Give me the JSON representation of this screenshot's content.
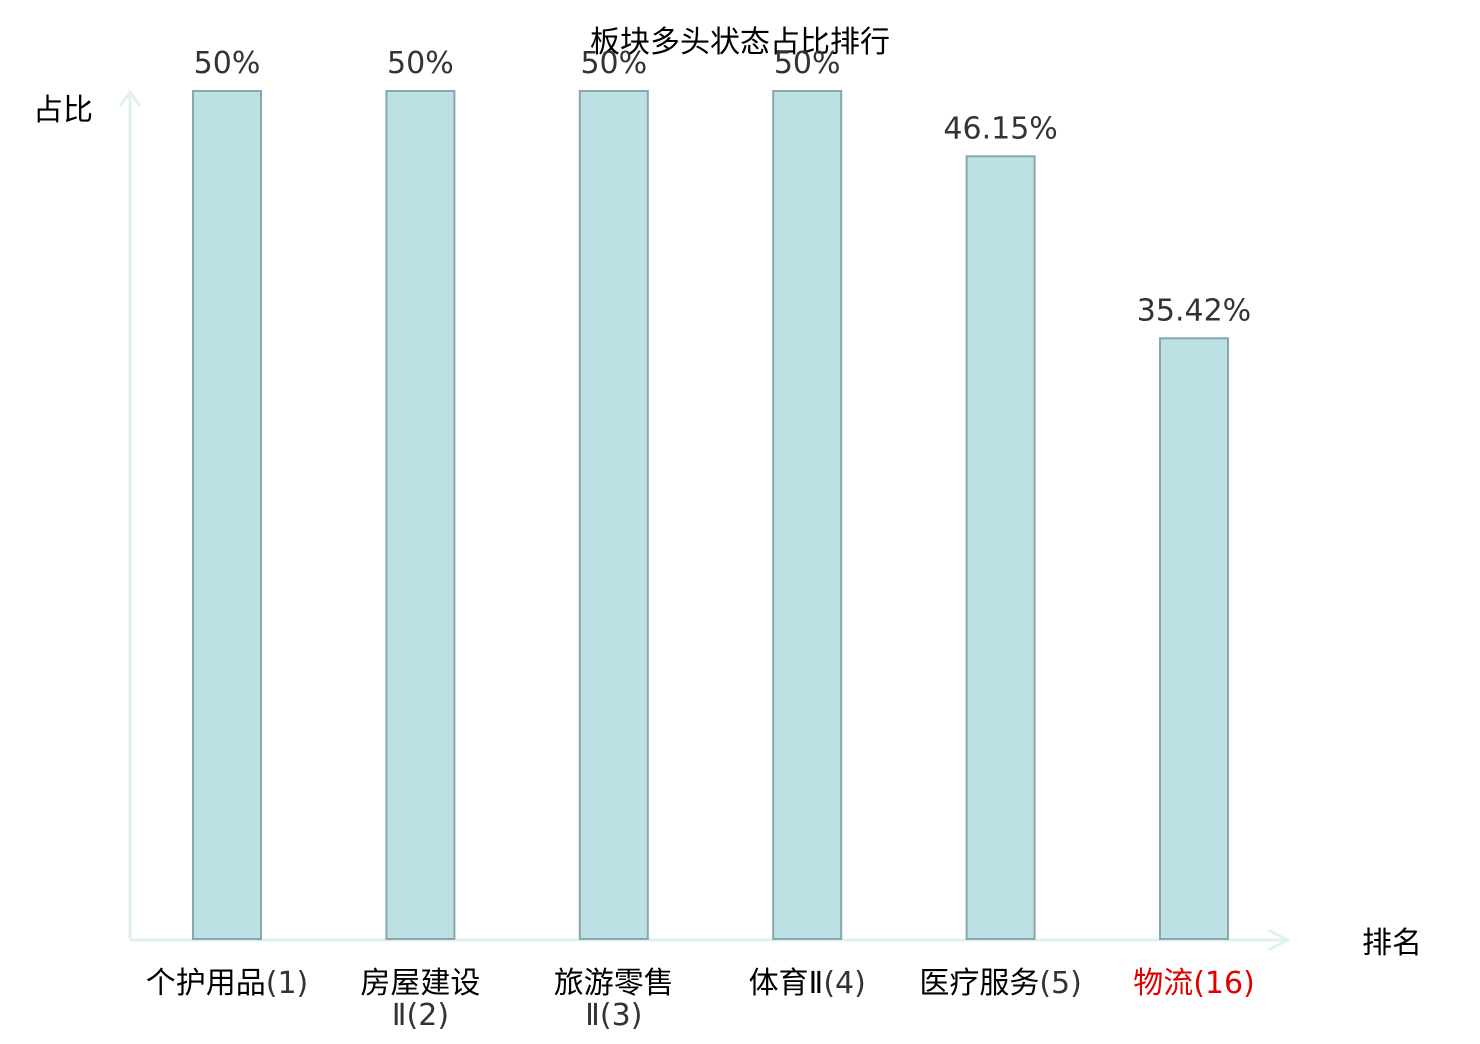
{
  "chart_data": {
    "type": "bar",
    "title": "板块多头状态占比排行",
    "ylabel": "占比",
    "xlabel": "排名",
    "ylim": [
      0,
      50
    ],
    "grid": false,
    "categories": [
      {
        "name": "个护用品",
        "rank": "(1)",
        "highlight": false
      },
      {
        "name": "房屋建设",
        "name_line2": "Ⅱ",
        "rank": "(2)",
        "highlight": false
      },
      {
        "name": "旅游零售",
        "name_line2": "Ⅱ",
        "rank": "(3)",
        "highlight": false
      },
      {
        "name": "体育Ⅱ",
        "rank": "(4)",
        "highlight": false
      },
      {
        "name": "医疗服务",
        "rank": "(5)",
        "highlight": false
      },
      {
        "name": "物流",
        "rank": "(16)",
        "highlight": true
      }
    ],
    "values": [
      50,
      50,
      50,
      50,
      46.15,
      35.42
    ],
    "value_labels": [
      "50%",
      "50%",
      "50%",
      "50%",
      "46.15%",
      "35.42%"
    ]
  },
  "colors": {
    "bar_fill": "#bce0e3",
    "bar_stroke": "#86a7ab",
    "axis": "#dff2ef",
    "label_text": "#333333",
    "highlight_text": "#e00000",
    "title_text": "#000000"
  }
}
